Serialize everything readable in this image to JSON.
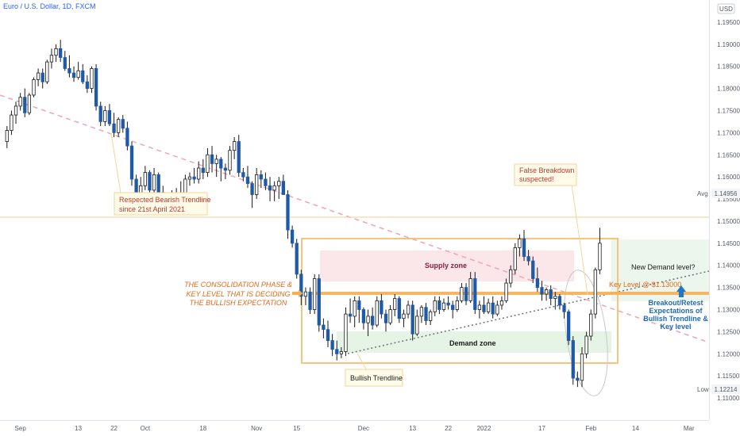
{
  "header": {
    "title": "Euro / U.S. Dollar, 1D, FXCM",
    "currency": "USD"
  },
  "chart_data": {
    "type": "candlestick",
    "ylim": [
      1.105,
      1.2
    ],
    "y_ticks": [
      1.195,
      1.19,
      1.185,
      1.18,
      1.175,
      1.17,
      1.165,
      1.16,
      1.155,
      1.15,
      1.145,
      1.14,
      1.135,
      1.13,
      1.125,
      1.12,
      1.115,
      1.11
    ],
    "y_tick_labels": [
      "1.19500",
      "1.19000",
      "1.18500",
      "1.18000",
      "1.17500",
      "1.17000",
      "1.16500",
      "1.16000",
      "1.15500",
      "1.15000",
      "1.14500",
      "1.14000",
      "1.13500",
      "1.13000",
      "1.12500",
      "1.12000",
      "1.11500",
      "1.11000"
    ],
    "x_tick_labels": [
      "Sep",
      "13",
      "22",
      "Oct",
      "18",
      "Nov",
      "15",
      "Dec",
      "13",
      "22",
      "2022",
      "17",
      "Feb",
      "14",
      "Mar"
    ],
    "x_tick_index": [
      3,
      16,
      24,
      31,
      44,
      56,
      65,
      80,
      91,
      99,
      107,
      120,
      131,
      141,
      153
    ],
    "markers": [
      {
        "label": "Avg",
        "value": "1.14956",
        "price": 1.14956
      },
      {
        "label": "Low",
        "value": "1.12214",
        "price": 1.12214
      }
    ],
    "ohlc": [
      [
        1.168,
        1.1715,
        1.1665,
        1.1705
      ],
      [
        1.1705,
        1.175,
        1.1695,
        1.174
      ],
      [
        1.174,
        1.177,
        1.172,
        1.176
      ],
      [
        1.176,
        1.179,
        1.175,
        1.178
      ],
      [
        1.178,
        1.18,
        1.1735,
        1.1745
      ],
      [
        1.1745,
        1.179,
        1.174,
        1.1785
      ],
      [
        1.1785,
        1.1825,
        1.178,
        1.182
      ],
      [
        1.182,
        1.1845,
        1.1805,
        1.1835
      ],
      [
        1.1835,
        1.1845,
        1.18,
        1.1815
      ],
      [
        1.1815,
        1.1865,
        1.181,
        1.186
      ],
      [
        1.186,
        1.189,
        1.1845,
        1.1875
      ],
      [
        1.1875,
        1.19,
        1.186,
        1.189
      ],
      [
        1.189,
        1.191,
        1.186,
        1.187
      ],
      [
        1.187,
        1.1885,
        1.184,
        1.1845
      ],
      [
        1.1845,
        1.1875,
        1.1825,
        1.1835
      ],
      [
        1.1835,
        1.185,
        1.1815,
        1.1825
      ],
      [
        1.1825,
        1.186,
        1.182,
        1.184
      ],
      [
        1.184,
        1.1855,
        1.181,
        1.1815
      ],
      [
        1.1815,
        1.183,
        1.179,
        1.18
      ],
      [
        1.18,
        1.185,
        1.179,
        1.1845
      ],
      [
        1.1845,
        1.1855,
        1.175,
        1.176
      ],
      [
        1.176,
        1.177,
        1.1715,
        1.1725
      ],
      [
        1.1725,
        1.176,
        1.1715,
        1.175
      ],
      [
        1.175,
        1.1765,
        1.1715,
        1.172
      ],
      [
        1.172,
        1.1745,
        1.169,
        1.17
      ],
      [
        1.17,
        1.1735,
        1.169,
        1.173
      ],
      [
        1.173,
        1.174,
        1.17,
        1.171
      ],
      [
        1.171,
        1.1725,
        1.166,
        1.167
      ],
      [
        1.167,
        1.168,
        1.158,
        1.1595
      ],
      [
        1.1595,
        1.1605,
        1.155,
        1.156
      ],
      [
        1.156,
        1.16,
        1.1545,
        1.158
      ],
      [
        1.158,
        1.1625,
        1.157,
        1.161
      ],
      [
        1.161,
        1.1615,
        1.156,
        1.157
      ],
      [
        1.157,
        1.162,
        1.156,
        1.1605
      ],
      [
        1.1605,
        1.161,
        1.1555,
        1.1565
      ],
      [
        1.1565,
        1.158,
        1.153,
        1.155
      ],
      [
        1.155,
        1.1565,
        1.153,
        1.1555
      ],
      [
        1.1555,
        1.157,
        1.1525,
        1.1545
      ],
      [
        1.1545,
        1.1575,
        1.154,
        1.156
      ],
      [
        1.156,
        1.159,
        1.152,
        1.153
      ],
      [
        1.153,
        1.1605,
        1.1525,
        1.1595
      ],
      [
        1.1595,
        1.161,
        1.158,
        1.16
      ],
      [
        1.16,
        1.162,
        1.1585,
        1.1595
      ],
      [
        1.1595,
        1.1635,
        1.1585,
        1.162
      ],
      [
        1.162,
        1.164,
        1.1595,
        1.161
      ],
      [
        1.161,
        1.1665,
        1.16,
        1.165
      ],
      [
        1.165,
        1.167,
        1.161,
        1.163
      ],
      [
        1.163,
        1.165,
        1.16,
        1.164
      ],
      [
        1.164,
        1.1645,
        1.159,
        1.162
      ],
      [
        1.162,
        1.163,
        1.1595,
        1.1615
      ],
      [
        1.1615,
        1.167,
        1.1605,
        1.166
      ],
      [
        1.166,
        1.169,
        1.164,
        1.168
      ],
      [
        1.168,
        1.1695,
        1.16,
        1.161
      ],
      [
        1.161,
        1.162,
        1.159,
        1.16
      ],
      [
        1.16,
        1.1625,
        1.1575,
        1.1585
      ],
      [
        1.1585,
        1.159,
        1.153,
        1.156
      ],
      [
        1.156,
        1.162,
        1.155,
        1.1605
      ],
      [
        1.1605,
        1.1615,
        1.1575,
        1.1595
      ],
      [
        1.1595,
        1.161,
        1.157,
        1.158
      ],
      [
        1.158,
        1.16,
        1.1545,
        1.157
      ],
      [
        1.157,
        1.159,
        1.1545,
        1.158
      ],
      [
        1.158,
        1.16,
        1.155,
        1.159
      ],
      [
        1.159,
        1.1605,
        1.1565,
        1.156
      ],
      [
        1.156,
        1.157,
        1.146,
        1.148
      ],
      [
        1.148,
        1.149,
        1.144,
        1.145
      ],
      [
        1.145,
        1.146,
        1.137,
        1.138
      ],
      [
        1.138,
        1.139,
        1.131,
        1.133
      ],
      [
        1.133,
        1.135,
        1.131,
        1.134
      ],
      [
        1.134,
        1.135,
        1.129,
        1.13
      ],
      [
        1.13,
        1.138,
        1.129,
        1.137
      ],
      [
        1.137,
        1.138,
        1.125,
        1.1265
      ],
      [
        1.1265,
        1.128,
        1.1235,
        1.1255
      ],
      [
        1.1255,
        1.1275,
        1.1215,
        1.123
      ],
      [
        1.123,
        1.1245,
        1.1195,
        1.121
      ],
      [
        1.121,
        1.123,
        1.1185,
        1.12
      ],
      [
        1.12,
        1.1215,
        1.119,
        1.1205
      ],
      [
        1.1205,
        1.1305,
        1.1195,
        1.129
      ],
      [
        1.129,
        1.1325,
        1.127,
        1.1285
      ],
      [
        1.1285,
        1.133,
        1.126,
        1.132
      ],
      [
        1.132,
        1.133,
        1.127,
        1.13
      ],
      [
        1.13,
        1.1305,
        1.1255,
        1.127
      ],
      [
        1.127,
        1.13,
        1.124,
        1.1285
      ],
      [
        1.1285,
        1.1305,
        1.1255,
        1.1265
      ],
      [
        1.1265,
        1.133,
        1.126,
        1.132
      ],
      [
        1.132,
        1.1335,
        1.128,
        1.129
      ],
      [
        1.129,
        1.13,
        1.125,
        1.127
      ],
      [
        1.127,
        1.131,
        1.1265,
        1.13
      ],
      [
        1.13,
        1.1335,
        1.1285,
        1.1325
      ],
      [
        1.1325,
        1.133,
        1.127,
        1.128
      ],
      [
        1.128,
        1.13,
        1.126,
        1.129
      ],
      [
        1.129,
        1.132,
        1.128,
        1.131
      ],
      [
        1.131,
        1.132,
        1.123,
        1.1245
      ],
      [
        1.1245,
        1.13,
        1.124,
        1.1285
      ],
      [
        1.1285,
        1.131,
        1.127,
        1.1305
      ],
      [
        1.1305,
        1.1315,
        1.1265,
        1.1275
      ],
      [
        1.1275,
        1.13,
        1.1265,
        1.1295
      ],
      [
        1.1295,
        1.133,
        1.1285,
        1.132
      ],
      [
        1.132,
        1.133,
        1.129,
        1.13
      ],
      [
        1.13,
        1.1325,
        1.1295,
        1.1315
      ],
      [
        1.1315,
        1.133,
        1.13,
        1.131
      ],
      [
        1.131,
        1.132,
        1.128,
        1.13
      ],
      [
        1.13,
        1.133,
        1.1295,
        1.132
      ],
      [
        1.132,
        1.136,
        1.1315,
        1.135
      ],
      [
        1.135,
        1.136,
        1.131,
        1.132
      ],
      [
        1.132,
        1.1385,
        1.1315,
        1.137
      ],
      [
        1.137,
        1.1385,
        1.129,
        1.13
      ],
      [
        1.13,
        1.132,
        1.128,
        1.131
      ],
      [
        1.131,
        1.133,
        1.129,
        1.1295
      ],
      [
        1.1295,
        1.1325,
        1.129,
        1.1315
      ],
      [
        1.1315,
        1.133,
        1.128,
        1.129
      ],
      [
        1.129,
        1.132,
        1.1285,
        1.131
      ],
      [
        1.131,
        1.133,
        1.13,
        1.132
      ],
      [
        1.132,
        1.137,
        1.1315,
        1.136
      ],
      [
        1.136,
        1.14,
        1.135,
        1.139
      ],
      [
        1.139,
        1.145,
        1.138,
        1.144
      ],
      [
        1.144,
        1.147,
        1.142,
        1.146
      ],
      [
        1.146,
        1.148,
        1.141,
        1.142
      ],
      [
        1.142,
        1.1435,
        1.14,
        1.141
      ],
      [
        1.141,
        1.142,
        1.136,
        1.137
      ],
      [
        1.137,
        1.1395,
        1.134,
        1.135
      ],
      [
        1.135,
        1.1365,
        1.132,
        1.1335
      ],
      [
        1.1335,
        1.135,
        1.132,
        1.1345
      ],
      [
        1.1345,
        1.1355,
        1.131,
        1.1325
      ],
      [
        1.1325,
        1.134,
        1.13,
        1.133
      ],
      [
        1.133,
        1.1335,
        1.13,
        1.131
      ],
      [
        1.131,
        1.1315,
        1.128,
        1.1295
      ],
      [
        1.1295,
        1.13,
        1.122,
        1.123
      ],
      [
        1.123,
        1.124,
        1.113,
        1.1145
      ],
      [
        1.1145,
        1.116,
        1.1125,
        1.114
      ],
      [
        1.114,
        1.1215,
        1.1125,
        1.12
      ],
      [
        1.12,
        1.125,
        1.119,
        1.124
      ],
      [
        1.124,
        1.13,
        1.123,
        1.129
      ],
      [
        1.129,
        1.1395,
        1.128,
        1.139
      ],
      [
        1.139,
        1.1485,
        1.138,
        1.145
      ]
    ],
    "annotations": [
      {
        "text": "Respected Bearish Trendline since 21st April 2021"
      },
      {
        "text": "False Breakdown suspected!"
      },
      {
        "text": "Supply zone"
      },
      {
        "text": "Demand zone"
      },
      {
        "text": "THE CONSOLIDATION PHASE & KEY LEVEL THAT IS DECIDING THE BULLISH EXPECTATION"
      },
      {
        "text": "Key Level @ $1.13000",
        "value": 1.13
      },
      {
        "text": "New Demand level?"
      },
      {
        "text": "Breakout/Retest Expectations of Bullish Trendline & Key level"
      },
      {
        "text": "Bullish Trendline"
      }
    ],
    "colors": {
      "up": "#ffffff",
      "down": "#1e5aa8",
      "wick": "#1a1a1a",
      "bearish_trendline": "#f0a5b4",
      "supply_zone": "#fbe3e7",
      "demand_zone": "#e5f3e5",
      "consolidation_box": "#f5c57e",
      "key_level": "#f5b056",
      "breakout_arrow": "#1e78c8"
    }
  }
}
